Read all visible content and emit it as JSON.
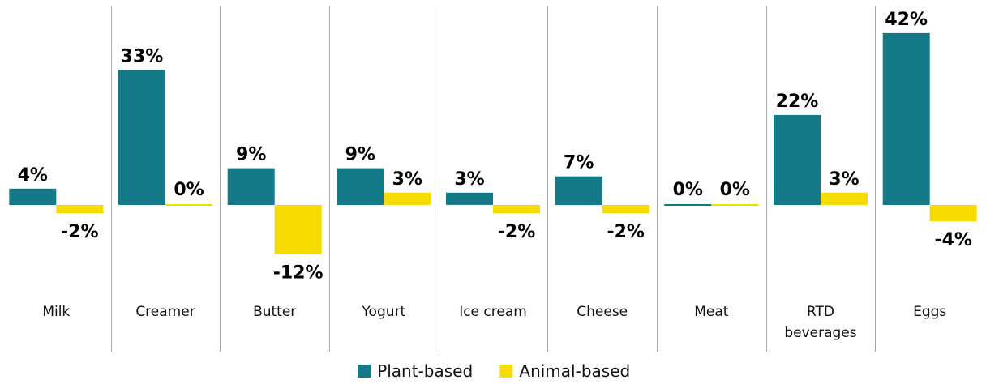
{
  "chart_data": {
    "type": "bar",
    "categories": [
      "Milk",
      "Creamer",
      "Butter",
      "Yogurt",
      "Ice cream",
      "Cheese",
      "Meat",
      "RTD beverages",
      "Eggs"
    ],
    "category_lines": [
      [
        "Milk"
      ],
      [
        "Creamer"
      ],
      [
        "Butter"
      ],
      [
        "Yogurt"
      ],
      [
        "Ice cream"
      ],
      [
        "Cheese"
      ],
      [
        "Meat"
      ],
      [
        "RTD",
        "beverages"
      ],
      [
        "Eggs"
      ]
    ],
    "series": [
      {
        "name": "Plant-based",
        "color": "#157A87",
        "values": [
          4,
          33,
          9,
          9,
          3,
          7,
          0,
          22,
          42
        ],
        "labels": [
          "4%",
          "33%",
          "9%",
          "9%",
          "3%",
          "7%",
          "0%",
          "22%",
          "42%"
        ]
      },
      {
        "name": "Animal-based",
        "color": "#F6DC00",
        "values": [
          -2,
          0,
          -12,
          3,
          -2,
          -2,
          0,
          3,
          -4
        ],
        "labels": [
          "-2%",
          "0%",
          "-12%",
          "3%",
          "-2%",
          "-2%",
          "0%",
          "3%",
          "-4%"
        ]
      }
    ],
    "ylim": [
      -20,
      45
    ],
    "legend_position": "bottom-center",
    "grid": false
  }
}
